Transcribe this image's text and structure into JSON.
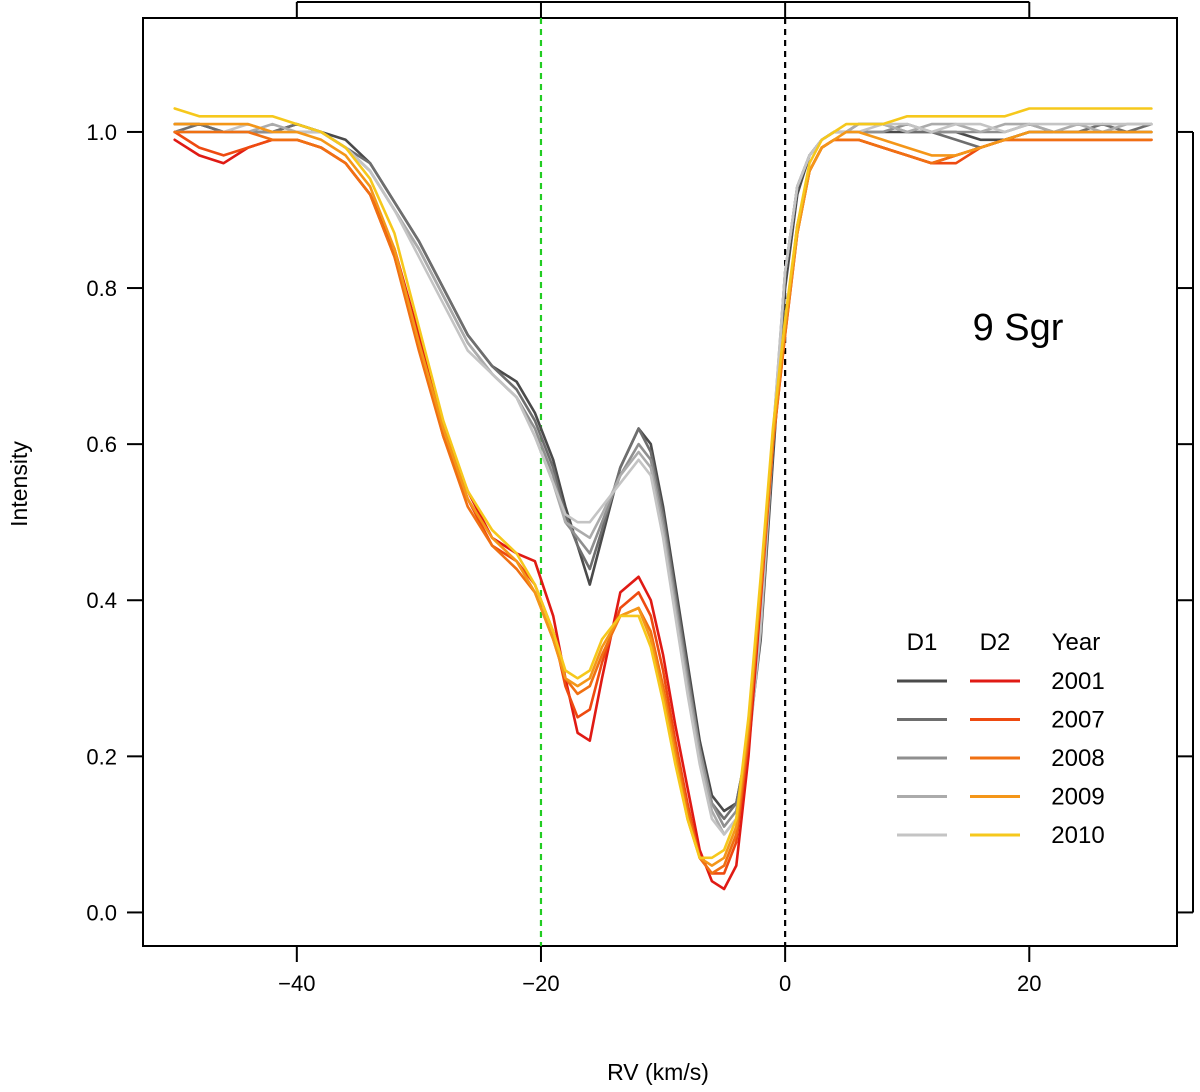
{
  "chart_data": {
    "type": "line",
    "xlabel": "RV (km/s)",
    "ylabel": "Intensity",
    "xlim": [
      -52.6,
      32.1
    ],
    "ylim": [
      -0.043,
      1.146
    ],
    "x_ticks": [
      -40,
      -20,
      0,
      20
    ],
    "x_tick_labels": [
      "−40",
      "−20",
      "0",
      "20"
    ],
    "y_ticks": [
      0.0,
      0.2,
      0.4,
      0.6,
      0.8,
      1.0
    ],
    "y_tick_labels": [
      "0.0",
      "0.2",
      "0.4",
      "0.6",
      "0.8",
      "1.0"
    ],
    "annotation": "9 Sgr",
    "reference_lines": [
      {
        "x": -20,
        "color": "#22cc22",
        "style": "dashed"
      },
      {
        "x": 0,
        "color": "#000000",
        "style": "dashed"
      }
    ],
    "legend": {
      "position": "bottom-right",
      "headers": [
        "D1",
        "D2",
        "Year"
      ],
      "years": [
        "2001",
        "2007",
        "2008",
        "2009",
        "2010"
      ],
      "d1_colors": [
        "#4a4a4a",
        "#6e6e6e",
        "#8f8f8f",
        "#ababab",
        "#c4c4c4"
      ],
      "d2_colors": [
        "#e01a14",
        "#ee4a10",
        "#f07012",
        "#f49618",
        "#f6c81c"
      ]
    },
    "x": [
      -50,
      -48,
      -46,
      -44,
      -42,
      -40,
      -38,
      -36,
      -34,
      -32,
      -30,
      -28,
      -26,
      -24,
      -22,
      -20.5,
      -19,
      -18,
      -17,
      -16,
      -15,
      -13.5,
      -12,
      -11,
      -10,
      -9,
      -8,
      -7,
      -6,
      -5,
      -4,
      -3,
      -2,
      -1,
      0,
      1,
      2,
      3,
      4,
      5,
      6,
      8,
      10,
      12,
      14,
      16,
      18,
      20,
      22,
      24,
      26,
      28,
      30
    ],
    "series": [
      {
        "line": "D1",
        "year": "2001",
        "values": [
          1.01,
          1.01,
          1.0,
          1.0,
          1.0,
          1.01,
          1.0,
          0.99,
          0.96,
          0.91,
          0.86,
          0.8,
          0.74,
          0.7,
          0.68,
          0.64,
          0.58,
          0.52,
          0.47,
          0.42,
          0.48,
          0.57,
          0.62,
          0.6,
          0.52,
          0.42,
          0.32,
          0.22,
          0.15,
          0.13,
          0.14,
          0.22,
          0.35,
          0.58,
          0.8,
          0.92,
          0.97,
          0.99,
          1.0,
          1.0,
          1.0,
          1.0,
          1.0,
          1.0,
          1.0,
          0.99,
          0.99,
          1.0,
          1.0,
          1.0,
          1.0,
          1.0,
          1.0
        ]
      },
      {
        "line": "D1",
        "year": "2007",
        "values": [
          1.0,
          1.01,
          1.0,
          1.0,
          1.0,
          1.01,
          1.0,
          0.98,
          0.96,
          0.91,
          0.86,
          0.8,
          0.74,
          0.7,
          0.67,
          0.63,
          0.57,
          0.51,
          0.47,
          0.44,
          0.49,
          0.57,
          0.62,
          0.59,
          0.51,
          0.41,
          0.31,
          0.21,
          0.14,
          0.12,
          0.14,
          0.22,
          0.36,
          0.6,
          0.82,
          0.93,
          0.97,
          0.99,
          1.0,
          1.0,
          1.01,
          1.01,
          1.0,
          1.0,
          0.99,
          0.98,
          0.99,
          1.0,
          1.0,
          1.0,
          1.01,
          1.0,
          1.01
        ]
      },
      {
        "line": "D1",
        "year": "2008",
        "values": [
          1.0,
          1.0,
          1.0,
          1.0,
          1.0,
          1.0,
          1.0,
          0.98,
          0.95,
          0.9,
          0.85,
          0.79,
          0.73,
          0.69,
          0.66,
          0.62,
          0.56,
          0.5,
          0.48,
          0.46,
          0.5,
          0.56,
          0.6,
          0.58,
          0.5,
          0.4,
          0.3,
          0.21,
          0.14,
          0.11,
          0.13,
          0.22,
          0.37,
          0.61,
          0.82,
          0.93,
          0.97,
          0.99,
          1.0,
          1.0,
          1.0,
          1.0,
          1.01,
          1.0,
          1.0,
          1.0,
          1.0,
          1.01,
          1.0,
          1.0,
          1.0,
          1.0,
          1.0
        ]
      },
      {
        "line": "D1",
        "year": "2009",
        "values": [
          1.0,
          1.0,
          1.0,
          1.0,
          1.01,
          1.0,
          1.0,
          0.98,
          0.95,
          0.9,
          0.85,
          0.79,
          0.73,
          0.69,
          0.66,
          0.61,
          0.55,
          0.5,
          0.49,
          0.48,
          0.51,
          0.56,
          0.59,
          0.57,
          0.49,
          0.39,
          0.29,
          0.2,
          0.13,
          0.1,
          0.12,
          0.21,
          0.36,
          0.6,
          0.82,
          0.93,
          0.97,
          0.99,
          1.0,
          1.0,
          1.01,
          1.01,
          1.0,
          1.01,
          1.01,
          1.0,
          1.01,
          1.01,
          1.0,
          1.01,
          1.0,
          1.01,
          1.01
        ]
      },
      {
        "line": "D1",
        "year": "2010",
        "values": [
          1.0,
          1.0,
          1.0,
          1.01,
          1.0,
          1.0,
          1.0,
          0.98,
          0.95,
          0.9,
          0.84,
          0.78,
          0.72,
          0.69,
          0.66,
          0.61,
          0.55,
          0.51,
          0.5,
          0.5,
          0.52,
          0.55,
          0.58,
          0.56,
          0.48,
          0.38,
          0.28,
          0.19,
          0.12,
          0.1,
          0.12,
          0.21,
          0.37,
          0.61,
          0.82,
          0.93,
          0.97,
          0.99,
          1.0,
          1.0,
          1.0,
          1.01,
          1.01,
          1.0,
          1.01,
          1.01,
          1.0,
          1.01,
          1.01,
          1.01,
          1.01,
          1.01,
          1.01
        ]
      },
      {
        "line": "D2",
        "year": "2001",
        "values": [
          0.99,
          0.97,
          0.96,
          0.98,
          0.99,
          0.99,
          0.98,
          0.96,
          0.92,
          0.85,
          0.74,
          0.62,
          0.54,
          0.48,
          0.46,
          0.45,
          0.38,
          0.3,
          0.23,
          0.22,
          0.3,
          0.41,
          0.43,
          0.4,
          0.33,
          0.24,
          0.16,
          0.08,
          0.04,
          0.03,
          0.06,
          0.2,
          0.4,
          0.6,
          0.75,
          0.88,
          0.95,
          0.98,
          0.99,
          0.99,
          0.99,
          0.98,
          0.97,
          0.96,
          0.97,
          0.98,
          0.99,
          0.99,
          0.99,
          0.99,
          0.99,
          0.99,
          0.99
        ]
      },
      {
        "line": "D2",
        "year": "2007",
        "values": [
          1.0,
          0.98,
          0.97,
          0.98,
          0.99,
          0.99,
          0.98,
          0.96,
          0.92,
          0.84,
          0.73,
          0.61,
          0.53,
          0.47,
          0.45,
          0.42,
          0.36,
          0.29,
          0.25,
          0.26,
          0.32,
          0.39,
          0.41,
          0.38,
          0.31,
          0.22,
          0.14,
          0.07,
          0.05,
          0.05,
          0.09,
          0.22,
          0.41,
          0.6,
          0.74,
          0.87,
          0.95,
          0.98,
          0.99,
          0.99,
          0.99,
          0.98,
          0.97,
          0.96,
          0.96,
          0.98,
          0.99,
          0.99,
          0.99,
          0.99,
          0.99,
          0.99,
          0.99
        ]
      },
      {
        "line": "D2",
        "year": "2008",
        "values": [
          1.0,
          1.0,
          1.0,
          1.0,
          0.99,
          0.99,
          0.98,
          0.96,
          0.92,
          0.84,
          0.72,
          0.61,
          0.52,
          0.47,
          0.44,
          0.41,
          0.35,
          0.3,
          0.28,
          0.29,
          0.33,
          0.38,
          0.39,
          0.36,
          0.29,
          0.21,
          0.13,
          0.07,
          0.05,
          0.06,
          0.1,
          0.23,
          0.41,
          0.6,
          0.74,
          0.87,
          0.95,
          0.98,
          0.99,
          0.99,
          0.99,
          0.98,
          0.97,
          0.96,
          0.97,
          0.98,
          0.99,
          0.99,
          0.99,
          0.99,
          0.99,
          0.99,
          0.99
        ]
      },
      {
        "line": "D2",
        "year": "2009",
        "values": [
          1.01,
          1.01,
          1.01,
          1.01,
          1.0,
          1.0,
          0.99,
          0.97,
          0.93,
          0.85,
          0.73,
          0.62,
          0.53,
          0.48,
          0.45,
          0.41,
          0.35,
          0.3,
          0.29,
          0.3,
          0.34,
          0.38,
          0.39,
          0.35,
          0.28,
          0.2,
          0.12,
          0.07,
          0.06,
          0.07,
          0.11,
          0.24,
          0.42,
          0.61,
          0.75,
          0.87,
          0.95,
          0.98,
          0.99,
          1.0,
          1.0,
          0.99,
          0.98,
          0.97,
          0.97,
          0.98,
          0.99,
          1.0,
          1.0,
          1.0,
          1.0,
          1.0,
          1.0
        ]
      },
      {
        "line": "D2",
        "year": "2010",
        "values": [
          1.03,
          1.02,
          1.02,
          1.02,
          1.02,
          1.01,
          1.0,
          0.98,
          0.94,
          0.87,
          0.75,
          0.63,
          0.54,
          0.49,
          0.46,
          0.42,
          0.36,
          0.31,
          0.3,
          0.31,
          0.35,
          0.38,
          0.38,
          0.34,
          0.27,
          0.19,
          0.12,
          0.07,
          0.07,
          0.08,
          0.12,
          0.25,
          0.43,
          0.62,
          0.76,
          0.88,
          0.96,
          0.99,
          1.0,
          1.01,
          1.01,
          1.01,
          1.02,
          1.02,
          1.02,
          1.02,
          1.02,
          1.03,
          1.03,
          1.03,
          1.03,
          1.03,
          1.03
        ]
      }
    ]
  }
}
